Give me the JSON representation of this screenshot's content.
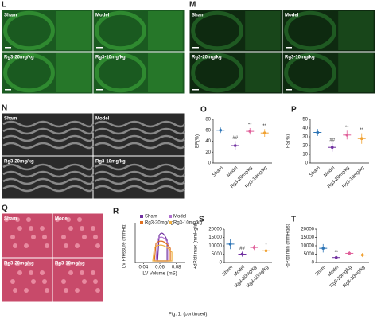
{
  "image_panels": [
    {
      "letter": "L",
      "labels": [
        "Sham",
        "Model",
        "Rg3-20mg/kg",
        "Rg3-10mg/kg"
      ]
    },
    {
      "letter": "M",
      "labels": [
        "Sham",
        "Model",
        "Rg3-20mg/kg",
        "Rg3-10mg/kg"
      ]
    },
    {
      "letter": "N",
      "labels": [
        "Sham",
        "Model",
        "Rg3-20mg/kg",
        "Rg3-10mg/kg"
      ]
    },
    {
      "letter": "Q",
      "labels": [
        "Sham",
        "Model",
        "Rg3-20mg/kg",
        "Rg3-10mg/kg"
      ]
    }
  ],
  "chart_data": [
    {
      "type": "dot",
      "letter": "O",
      "ylabel": "EF(%)",
      "categories": [
        "Sham",
        "Model",
        "Rg3-20mg/kg",
        "Rg3-10mg/kg"
      ],
      "values": [
        60,
        32,
        58,
        55
      ],
      "errors": [
        5,
        8,
        6,
        7
      ],
      "colors": [
        "#2e75b6",
        "#7030a0",
        "#e0609a",
        "#f0a030"
      ],
      "ylim": [
        0,
        80
      ],
      "yticks": [
        0,
        20,
        40,
        60,
        80
      ],
      "annotations": [
        {
          "category": "Model",
          "text": "##"
        },
        {
          "category": "Rg3-20mg/kg",
          "text": "**"
        },
        {
          "category": "Rg3-10mg/kg",
          "text": "**"
        }
      ]
    },
    {
      "type": "dot",
      "letter": "P",
      "ylabel": "FS(%)",
      "categories": [
        "Sham",
        "Model",
        "Rg3-20mg/kg",
        "Rg3-10mg/kg"
      ],
      "values": [
        35,
        18,
        32,
        28
      ],
      "errors": [
        4,
        5,
        5,
        6
      ],
      "colors": [
        "#2e75b6",
        "#7030a0",
        "#e0609a",
        "#f0a030"
      ],
      "ylim": [
        0,
        50
      ],
      "yticks": [
        0,
        10,
        20,
        30,
        40,
        50
      ],
      "annotations": [
        {
          "category": "Model",
          "text": "##"
        },
        {
          "category": "Rg3-20mg/kg",
          "text": "**"
        },
        {
          "category": "Rg3-10mg/kg",
          "text": "**"
        }
      ]
    },
    {
      "type": "pv-loop",
      "letter": "R",
      "ylabel": "LV Pressure (mmHg)",
      "xlabel": "LV Volume (mS)",
      "xlim": [
        0.03,
        0.09
      ],
      "xticks": [
        0.04,
        0.06,
        0.08
      ],
      "series": [
        {
          "name": "Sham",
          "color": "#7030a0"
        },
        {
          "name": "Model",
          "color": "#b070d0"
        },
        {
          "name": "Rg3-20mg/kg",
          "color": "#e07020"
        },
        {
          "name": "Rg3-10mg/kg",
          "color": "#f0b040"
        }
      ]
    },
    {
      "type": "dot",
      "letter": "S",
      "ylabel": "+dP/dt max (mmHg/s)",
      "categories": [
        "Sham",
        "Model",
        "Rg3-20mg/kg",
        "Rg3-10mg/kg"
      ],
      "values": [
        11000,
        5000,
        9000,
        7000
      ],
      "errors": [
        3000,
        1500,
        1500,
        1500
      ],
      "colors": [
        "#2e75b6",
        "#7030a0",
        "#e0609a",
        "#f0a030"
      ],
      "ylim": [
        0,
        20000
      ],
      "yticks": [
        0,
        5000,
        10000,
        15000,
        20000
      ],
      "annotations": [
        {
          "category": "Model",
          "text": "##"
        },
        {
          "category": "Rg3-10mg/kg",
          "text": "*"
        }
      ]
    },
    {
      "type": "dot",
      "letter": "T",
      "ylabel": "-dP/dt min (mmHg/s)",
      "categories": [
        "Sham",
        "Model",
        "Rg3-20mg/kg",
        "Rg3-10mg/kg"
      ],
      "values": [
        8500,
        3000,
        5500,
        4500
      ],
      "errors": [
        2500,
        1000,
        1200,
        1200
      ],
      "colors": [
        "#2e75b6",
        "#7030a0",
        "#e0609a",
        "#f0a030"
      ],
      "ylim": [
        0,
        20000
      ],
      "yticks": [
        0,
        5000,
        10000,
        15000,
        20000
      ],
      "annotations": [
        {
          "category": "Model",
          "text": "**"
        }
      ]
    }
  ],
  "caption": "Fig. 1. (continued)."
}
